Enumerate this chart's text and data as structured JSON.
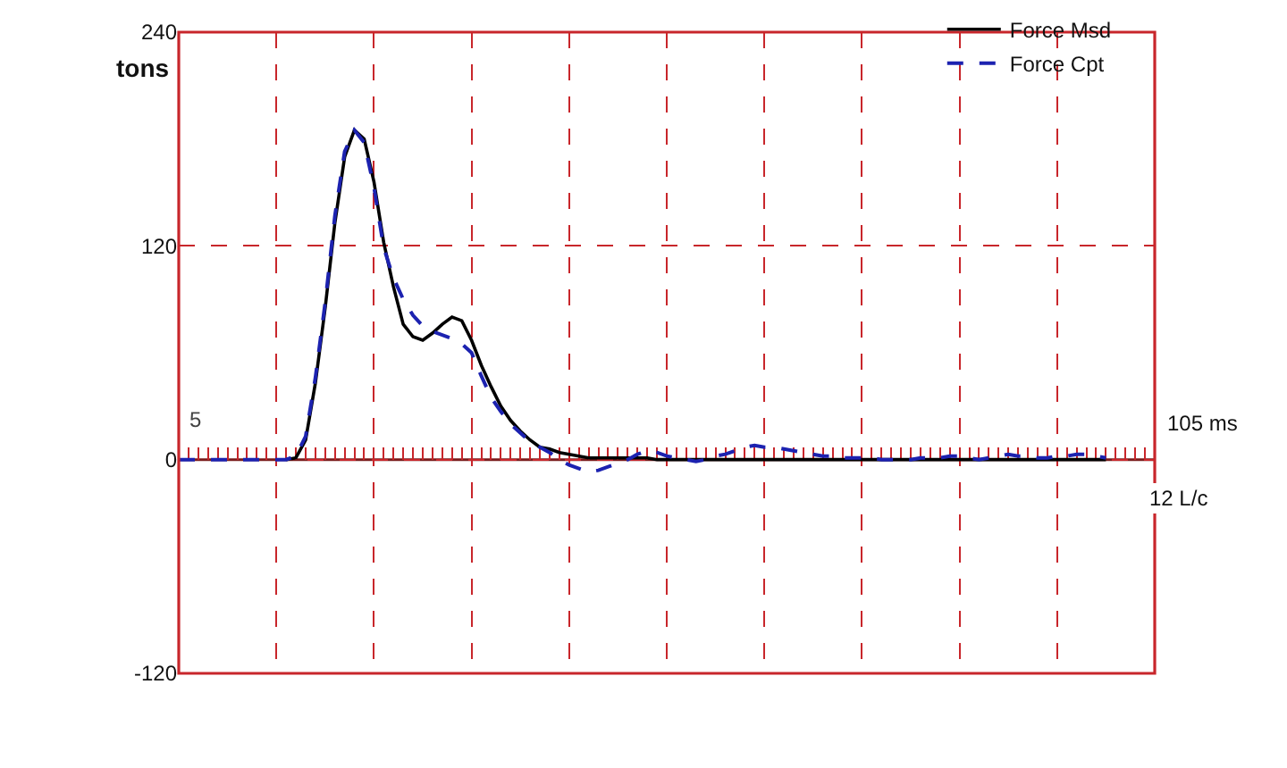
{
  "chart_data": {
    "type": "line",
    "ylabel": "tons",
    "categories": [
      null,
      null,
      null,
      null,
      null,
      null,
      null,
      null,
      null,
      null,
      null,
      null,
      null,
      null,
      null,
      null,
      null,
      null,
      null,
      null,
      null,
      null,
      null,
      null,
      null,
      null,
      null,
      null,
      null,
      null,
      null,
      null,
      null,
      null,
      null,
      null,
      null,
      null,
      null,
      null,
      null,
      null,
      null,
      null,
      null,
      null,
      null,
      null,
      null,
      null,
      null,
      null,
      null,
      null,
      null,
      null,
      null,
      null,
      null,
      null,
      null,
      null,
      null,
      null,
      null,
      null,
      null,
      null,
      null,
      null,
      null,
      null,
      null,
      null,
      null,
      null,
      null,
      null,
      null,
      null,
      null,
      null,
      null,
      null,
      null,
      null,
      null,
      null,
      null,
      null,
      null,
      null,
      null,
      null,
      null,
      null,
      null,
      null,
      null,
      null,
      null
    ],
    "ylim": [
      -120,
      240
    ],
    "yticks": [
      -120,
      0,
      120,
      240
    ],
    "grid": true,
    "legend": "top right",
    "ref_lines": [
      {
        "axis": "y",
        "value": 0,
        "color": "#7a1c1c"
      }
    ],
    "annotations": [
      "5",
      "105 ms",
      "12 L/c"
    ],
    "series": [
      {
        "name": "Force Msd",
        "color": "#000000",
        "line_style": "solid",
        "values": [
          null,
          null,
          null,
          null,
          null,
          null,
          null,
          null,
          null,
          null,
          null,
          0,
          1,
          11,
          43,
          85,
          133,
          170,
          185,
          180,
          156,
          122,
          97,
          76,
          69,
          67,
          71,
          76,
          80,
          78,
          67,
          53,
          41,
          30,
          22,
          16,
          11,
          7,
          6,
          4,
          3,
          2,
          1,
          1,
          1,
          1,
          1,
          1,
          1,
          0,
          0,
          0,
          0,
          0,
          0,
          0,
          0,
          0,
          0,
          0,
          0,
          0,
          0,
          0,
          0,
          0,
          0,
          0,
          0,
          0,
          0,
          0,
          0,
          0,
          0,
          0,
          0,
          0,
          0,
          0,
          0,
          0,
          0,
          0,
          0,
          0,
          0,
          0,
          0,
          0,
          0,
          0,
          0,
          0,
          0,
          0,
          null,
          null,
          null,
          null,
          null
        ]
      },
      {
        "name": "Force Cpt",
        "color": "#1c22b0",
        "line_style": "dashed",
        "values": [
          0,
          0,
          0,
          0,
          0,
          0,
          0,
          0,
          0,
          0,
          0,
          0,
          2,
          13,
          46,
          88,
          137,
          173,
          185,
          178,
          153,
          119,
          102,
          90,
          81,
          75,
          72,
          70,
          68,
          65,
          60,
          47,
          35,
          27,
          20,
          15,
          10,
          7,
          4,
          0,
          -3,
          -5,
          -7,
          -6,
          -4,
          -2,
          0,
          3,
          5,
          4,
          2,
          1,
          0,
          -1,
          0,
          2,
          3,
          5,
          7,
          8,
          7,
          7,
          6,
          5,
          4,
          3,
          2,
          2,
          1,
          1,
          1,
          1,
          0,
          0,
          0,
          0,
          1,
          1,
          1,
          2,
          2,
          1,
          0,
          1,
          2,
          3,
          2,
          2,
          1,
          1,
          2,
          2,
          3,
          3,
          2,
          1,
          null,
          null,
          null,
          null,
          null
        ]
      }
    ]
  }
}
